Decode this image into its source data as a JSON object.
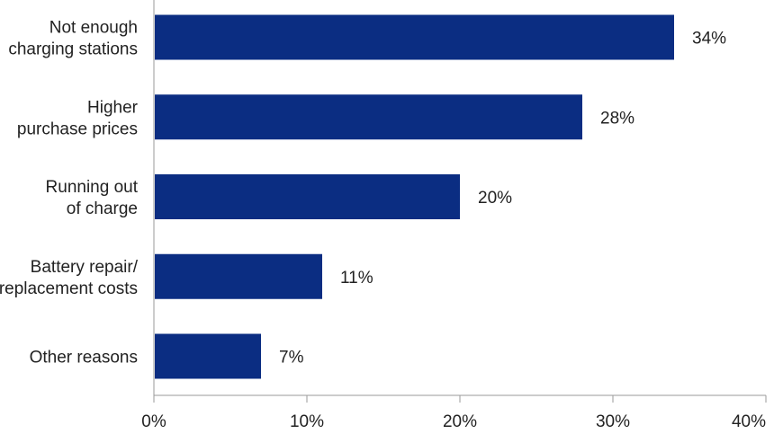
{
  "chart_data": {
    "type": "bar",
    "orientation": "horizontal",
    "categories": [
      [
        "Not enough",
        "charging stations"
      ],
      [
        "Higher",
        "purchase prices"
      ],
      [
        "Running out",
        "of charge"
      ],
      [
        "Battery repair/",
        "replacement costs"
      ],
      [
        "Other reasons"
      ]
    ],
    "values": [
      34,
      28,
      20,
      11,
      7
    ],
    "value_labels": [
      "34%",
      "28%",
      "20%",
      "11%",
      "7%"
    ],
    "xlim": [
      0,
      40
    ],
    "xticks": [
      0,
      10,
      20,
      30,
      40
    ],
    "xtick_labels": [
      "0%",
      "10%",
      "20%",
      "30%",
      "40%"
    ],
    "grid": false,
    "bar_color": "#0b2d82"
  }
}
